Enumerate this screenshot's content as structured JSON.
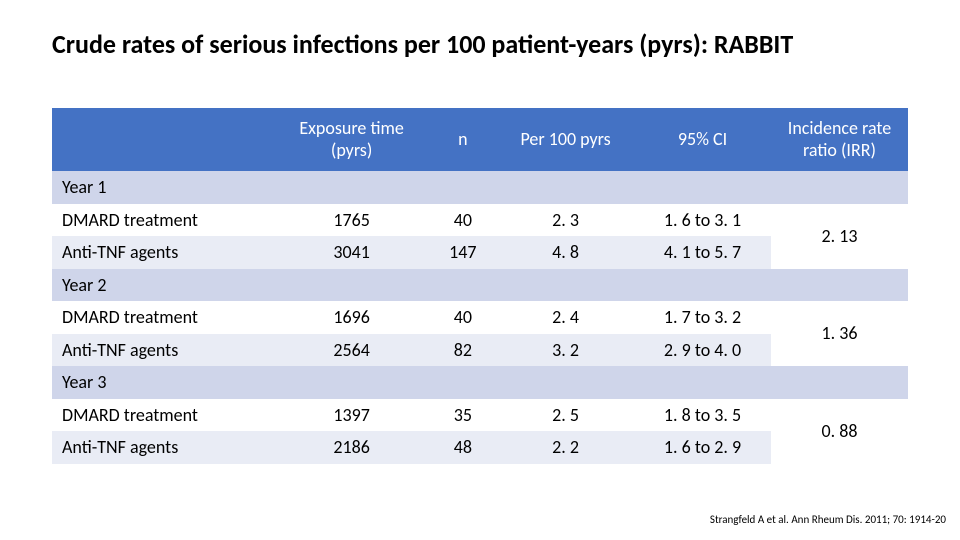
{
  "title": "Crude rates of serious infections per 100 patient-years (pyrs): RABBIT",
  "colors": {
    "header_bg": "#4472c4",
    "header_fg": "#ffffff",
    "group_bg": "#cfd5ea",
    "light_bg": "#e9ecf5",
    "white": "#ffffff"
  },
  "columns": {
    "label": "",
    "exposure": "Exposure time (pyrs)",
    "n": "n",
    "per100": "Per 100 pyrs",
    "ci": "95% CI",
    "irr": "Incidence rate ratio (IRR)"
  },
  "groups": [
    {
      "name": "Year 1",
      "dmard": {
        "label": "DMARD treatment",
        "exposure": "1765",
        "n": "40",
        "per100": "2. 3",
        "ci": "1. 6 to 3. 1"
      },
      "anti": {
        "label": "Anti-TNF agents",
        "exposure": "3041",
        "n": "147",
        "per100": "4. 8",
        "ci": "4. 1 to 5. 7"
      },
      "irr": "2. 13"
    },
    {
      "name": "Year 2",
      "dmard": {
        "label": "DMARD treatment",
        "exposure": "1696",
        "n": "40",
        "per100": "2. 4",
        "ci": "1. 7 to 3. 2"
      },
      "anti": {
        "label": "Anti-TNF agents",
        "exposure": "2564",
        "n": "82",
        "per100": "3. 2",
        "ci": "2. 9 to 4. 0"
      },
      "irr": "1. 36"
    },
    {
      "name": "Year 3",
      "dmard": {
        "label": "DMARD treatment",
        "exposure": "1397",
        "n": "35",
        "per100": "2. 5",
        "ci": "1. 8 to 3. 5"
      },
      "anti": {
        "label": "Anti-TNF agents",
        "exposure": "2186",
        "n": "48",
        "per100": "2. 2",
        "ci": "1. 6 to 2. 9"
      },
      "irr": "0. 88"
    }
  ],
  "citation": "Strangfeld A et al. Ann Rheum Dis. 2011; 70: 1914-20"
}
